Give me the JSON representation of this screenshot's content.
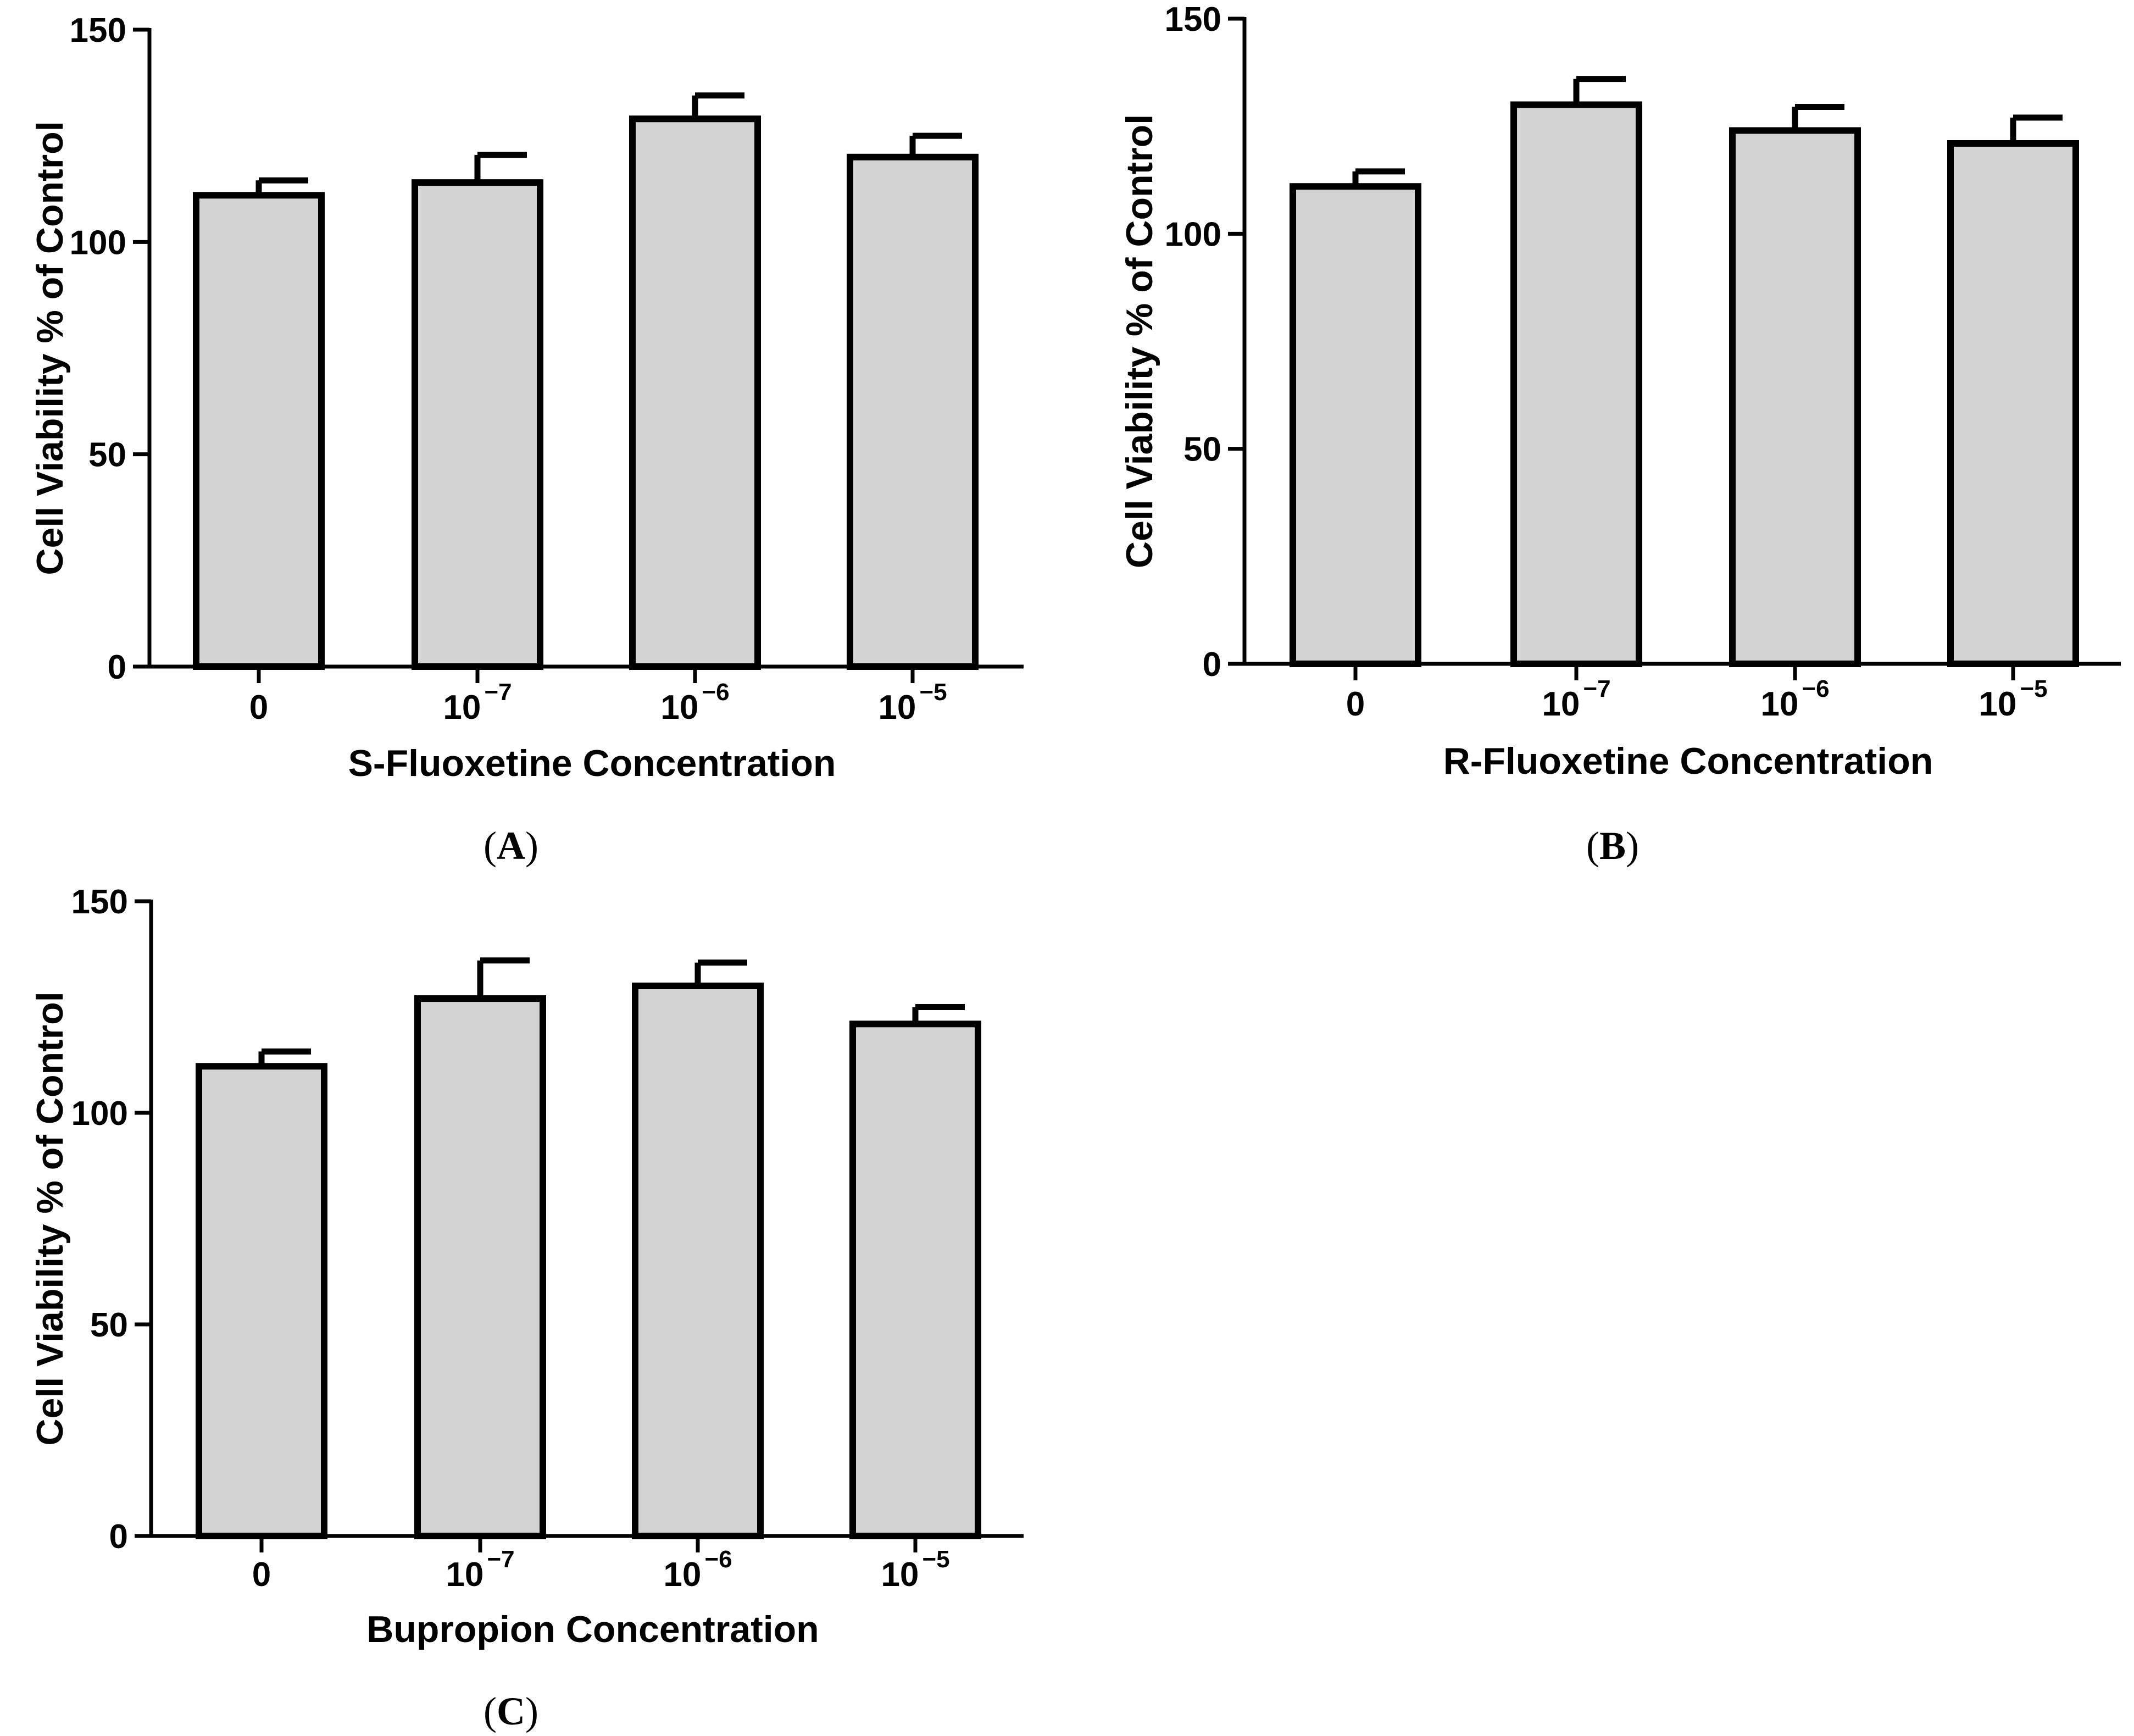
{
  "chart_data": [
    {
      "type": "bar",
      "panel_label": "A",
      "xlabel": "S-Fluoxetine Concentration",
      "ylabel": "Cell Viability % of  Control",
      "ylim": [
        0,
        150
      ],
      "yticks": [
        "0",
        "50",
        "100",
        "150"
      ],
      "categories": [
        {
          "base": "0",
          "exp": ""
        },
        {
          "base": "10",
          "exp": "−7"
        },
        {
          "base": "10",
          "exp": "−6"
        },
        {
          "base": "10",
          "exp": "−5"
        }
      ],
      "values": [
        111,
        114,
        129,
        120
      ],
      "errors": [
        3.5,
        6.5,
        5.5,
        5
      ],
      "bar_color": "#d3d3d3"
    },
    {
      "type": "bar",
      "panel_label": "B",
      "xlabel": "R-Fluoxetine Concentration",
      "ylabel": "Cell Viability % of  Control",
      "ylim": [
        0,
        150
      ],
      "yticks": [
        "0",
        "50",
        "100",
        "150"
      ],
      "categories": [
        {
          "base": "0",
          "exp": ""
        },
        {
          "base": "10",
          "exp": "−7"
        },
        {
          "base": "10",
          "exp": "−6"
        },
        {
          "base": "10",
          "exp": "−5"
        }
      ],
      "values": [
        111,
        130,
        124,
        121
      ],
      "errors": [
        3.5,
        6,
        5.5,
        6
      ],
      "bar_color": "#d3d3d3"
    },
    {
      "type": "bar",
      "panel_label": "C",
      "xlabel": "Bupropion Concentration",
      "ylabel": "Cell Viability % of  Control",
      "ylim": [
        0,
        150
      ],
      "yticks": [
        "0",
        "50",
        "100",
        "150"
      ],
      "categories": [
        {
          "base": "0",
          "exp": ""
        },
        {
          "base": "10",
          "exp": "−7"
        },
        {
          "base": "10",
          "exp": "−6"
        },
        {
          "base": "10",
          "exp": "−5"
        }
      ],
      "values": [
        111,
        127,
        130,
        121
      ],
      "errors": [
        3.5,
        9,
        5.5,
        4
      ],
      "bar_color": "#d3d3d3"
    }
  ]
}
